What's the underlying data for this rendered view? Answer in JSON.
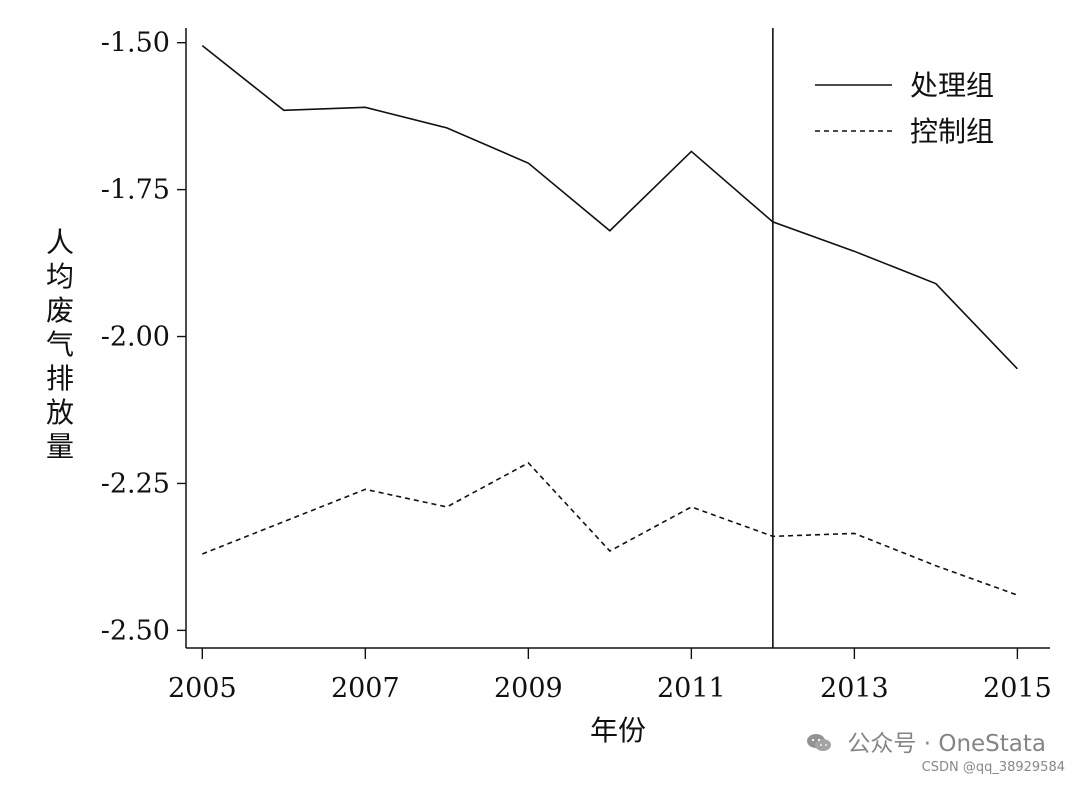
{
  "chart_data": {
    "type": "line",
    "x": [
      2005,
      2006,
      2007,
      2008,
      2009,
      2010,
      2011,
      2012,
      2013,
      2014,
      2015
    ],
    "series": [
      {
        "name": "处理组",
        "values": [
          -1.505,
          -1.615,
          -1.61,
          -1.645,
          -1.705,
          -1.82,
          -1.685,
          -1.805,
          -1.855,
          -1.91,
          -2.055
        ],
        "line_style": "solid",
        "color": "#111111"
      },
      {
        "name": "控制组",
        "values": [
          -2.37,
          -2.315,
          -2.26,
          -2.29,
          -2.215,
          -2.365,
          -2.29,
          -2.34,
          -2.335,
          -2.39,
          -2.44
        ],
        "line_style": "dashed",
        "color": "#111111"
      }
    ],
    "xlabel": "年份",
    "ylabel": "人均废气排放量",
    "xlim": [
      2004.8,
      2015.4
    ],
    "ylim": [
      -2.53,
      -1.475
    ],
    "xticks": [
      2005,
      2007,
      2009,
      2011,
      2013,
      2015
    ],
    "yticks": [
      -1.5,
      -1.75,
      -2.0,
      -2.25,
      -2.5
    ],
    "ytick_labels": [
      "-1.50",
      "-1.75",
      "-2.00",
      "-2.25",
      "-2.50"
    ],
    "xtick_labels": [
      "2005",
      "2007",
      "2009",
      "2011",
      "2013",
      "2015"
    ],
    "reference_line_x": 2012,
    "grid": false,
    "legend_position": "top-right"
  },
  "watermark": {
    "text": "公众号 · OneStata"
  },
  "source_note": {
    "text": "CSDN @qq_38929584"
  }
}
